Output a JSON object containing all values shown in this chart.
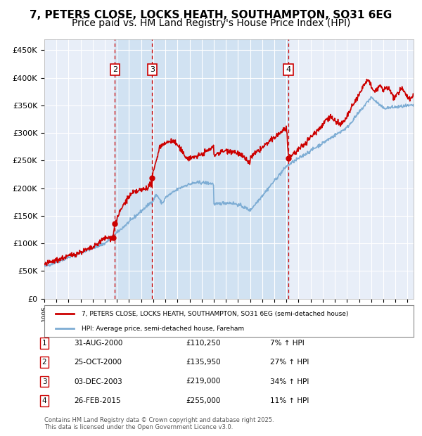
{
  "title_line1": "7, PETERS CLOSE, LOCKS HEATH, SOUTHAMPTON, SO31 6EG",
  "title_line2": "Price paid vs. HM Land Registry's House Price Index (HPI)",
  "title_fontsize": 11,
  "subtitle_fontsize": 10,
  "background_color": "#ffffff",
  "plot_bg_color": "#e8eef8",
  "grid_color": "#ffffff",
  "ylabel_values": [
    "£0",
    "£50K",
    "£100K",
    "£150K",
    "£200K",
    "£250K",
    "£300K",
    "£350K",
    "£400K",
    "£450K"
  ],
  "yticks": [
    0,
    50000,
    100000,
    150000,
    200000,
    250000,
    300000,
    350000,
    400000,
    450000
  ],
  "ylim": [
    0,
    470000
  ],
  "xlim_start": 1995.0,
  "xlim_end": 2025.5,
  "sale_points": [
    {
      "label": "1",
      "date_x": 2000.667,
      "price": 110250
    },
    {
      "label": "2",
      "date_x": 2000.833,
      "price": 135950
    },
    {
      "label": "3",
      "date_x": 2003.917,
      "price": 219000
    },
    {
      "label": "4",
      "date_x": 2015.167,
      "price": 255000
    }
  ],
  "vline_dates": [
    2000.833,
    2003.917,
    2015.167
  ],
  "shaded_region": [
    2000.833,
    2015.167
  ],
  "legend_red_label": "7, PETERS CLOSE, LOCKS HEATH, SOUTHAMPTON, SO31 6EG (semi-detached house)",
  "legend_blue_label": "HPI: Average price, semi-detached house, Fareham",
  "table_rows": [
    {
      "num": "1",
      "date": "31-AUG-2000",
      "price": "£110,250",
      "change": "7% ↑ HPI"
    },
    {
      "num": "2",
      "date": "25-OCT-2000",
      "price": "£135,950",
      "change": "27% ↑ HPI"
    },
    {
      "num": "3",
      "date": "03-DEC-2003",
      "price": "£219,000",
      "change": "34% ↑ HPI"
    },
    {
      "num": "4",
      "date": "26-FEB-2015",
      "price": "£255,000",
      "change": "11% ↑ HPI"
    }
  ],
  "footer_text": "Contains HM Land Registry data © Crown copyright and database right 2025.\nThis data is licensed under the Open Government Licence v3.0.",
  "red_color": "#cc0000",
  "blue_color": "#7eadd4",
  "marker_color": "#cc0000"
}
